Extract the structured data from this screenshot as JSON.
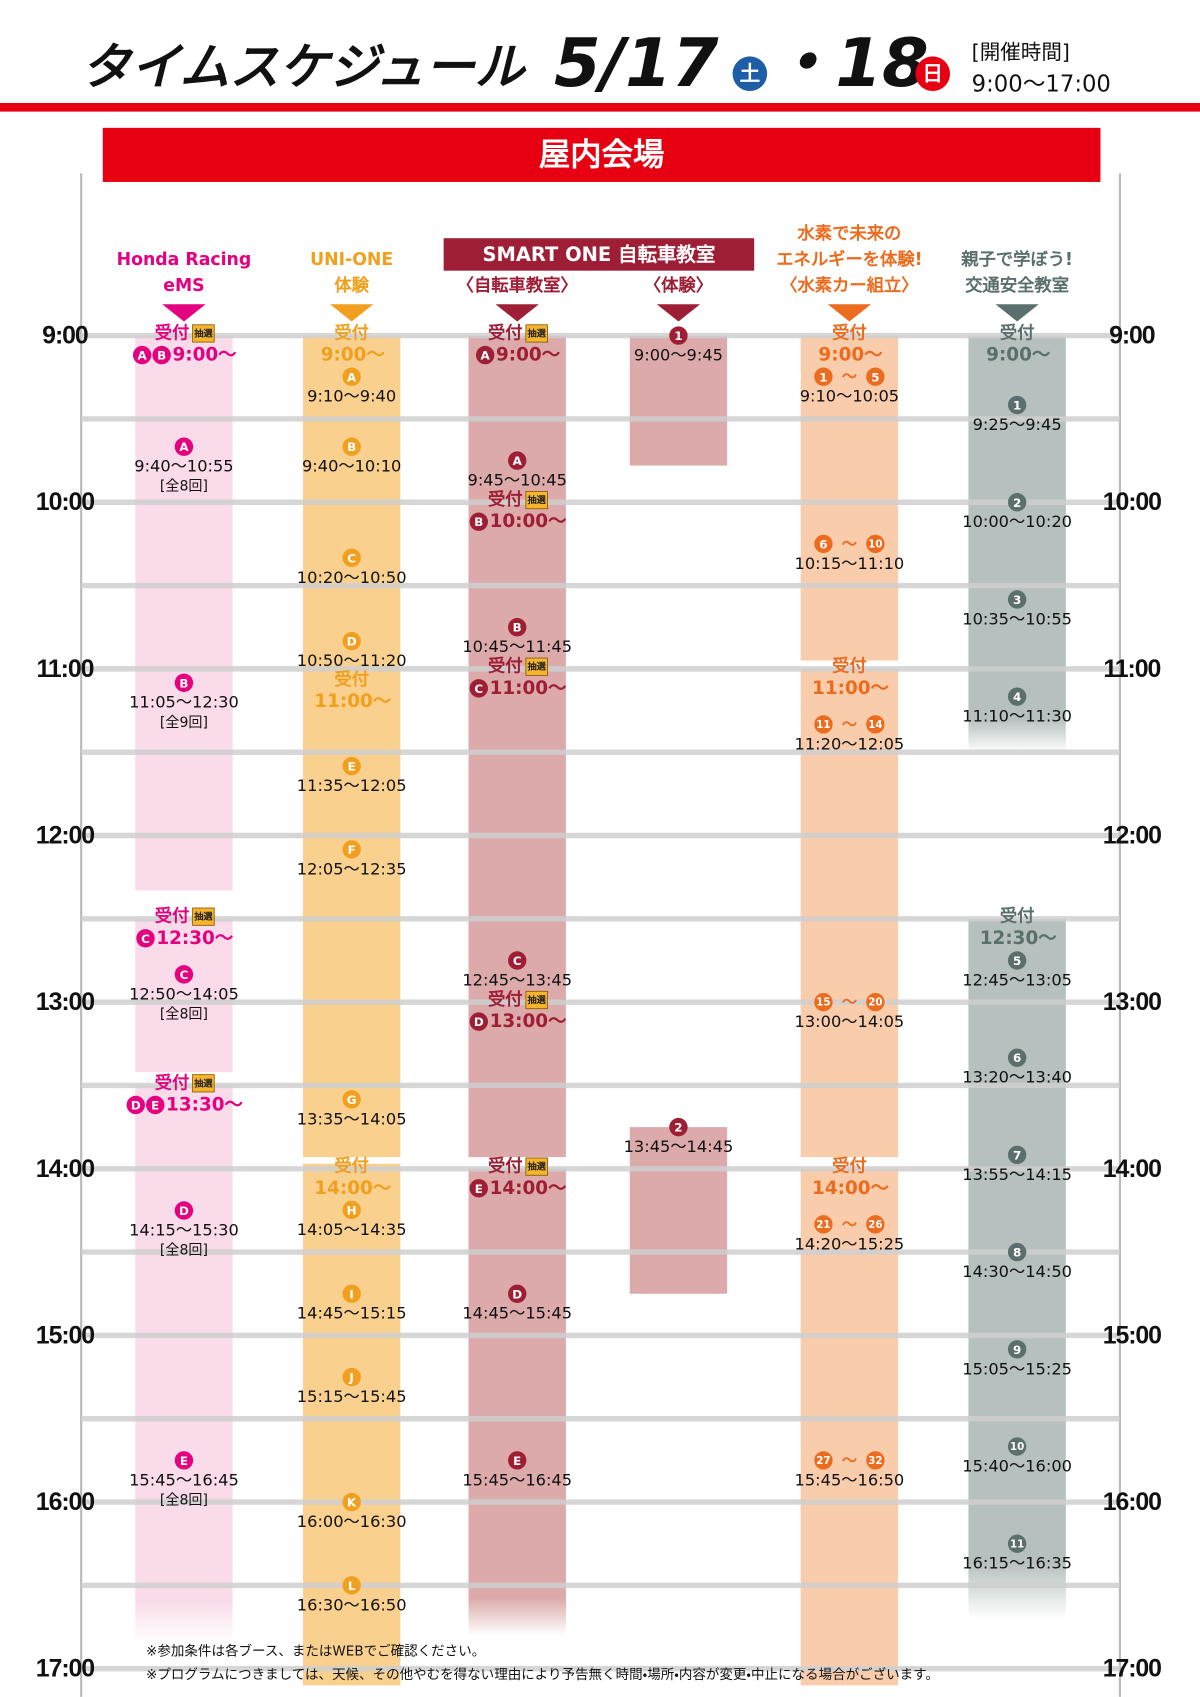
{
  "header": {
    "title": "タイムスケジュール",
    "date1": "5/17",
    "day1": "土",
    "date2": "・18",
    "day2": "日",
    "hours_label": "[開催時間]",
    "hours": "9:00～17:00"
  },
  "venue": "屋内会場",
  "time_labels": [
    "9:00",
    "10:00",
    "11:00",
    "12:00",
    "13:00",
    "14:00",
    "15:00",
    "16:00",
    "17:00"
  ],
  "columns": [
    {
      "title": [
        "Honda Racing",
        "eMS"
      ],
      "color": "#e4007f",
      "fill": "#f9dbe9",
      "items": [
        {
          "reception": "受付",
          "lottery": "抽選",
          "badges": [
            "A",
            "B"
          ],
          "time": "9:00～"
        },
        {
          "badges": [
            "A"
          ],
          "time": "9:40～10:55",
          "note": "[全8回]"
        },
        {
          "badges": [
            "B"
          ],
          "time": "11:05～12:30",
          "note": "[全9回]"
        },
        {
          "reception": "受付",
          "lottery": "抽選",
          "badges": [
            "C"
          ],
          "time": "12:30～"
        },
        {
          "badges": [
            "C"
          ],
          "time": "12:50～14:05",
          "note": "[全8回]"
        },
        {
          "reception": "受付",
          "lottery": "抽選",
          "badges": [
            "D",
            "E"
          ],
          "time": "13:30～"
        },
        {
          "badges": [
            "D"
          ],
          "time": "14:15～15:30",
          "note": "[全8回]"
        },
        {
          "badges": [
            "E"
          ],
          "time": "15:45～16:45",
          "note": "[全8回]"
        }
      ]
    },
    {
      "title": [
        "UNI-ONE",
        "体験"
      ],
      "color": "#f0a01e",
      "fill": "#f9d08e",
      "items": [
        {
          "reception": "受付",
          "time": "9:00～"
        },
        {
          "badges": [
            "A"
          ],
          "time": "9:10～9:40"
        },
        {
          "badges": [
            "B"
          ],
          "time": "9:40～10:10"
        },
        {
          "badges": [
            "C"
          ],
          "time": "10:20～10:50"
        },
        {
          "badges": [
            "D"
          ],
          "time": "10:50～11:20"
        },
        {
          "reception": "受付",
          "time": "11:00～"
        },
        {
          "badges": [
            "E"
          ],
          "time": "11:35～12:05"
        },
        {
          "badges": [
            "F"
          ],
          "time": "12:05～12:35"
        },
        {
          "badges": [
            "G"
          ],
          "time": "13:35～14:05"
        },
        {
          "reception": "受付",
          "time": "14:00～"
        },
        {
          "badges": [
            "H"
          ],
          "time": "14:05～14:35"
        },
        {
          "badges": [
            "I"
          ],
          "time": "14:45～15:15"
        },
        {
          "badges": [
            "J"
          ],
          "time": "15:15～15:45"
        },
        {
          "badges": [
            "K"
          ],
          "time": "16:00～16:30"
        },
        {
          "badges": [
            "L"
          ],
          "time": "16:30～16:50"
        }
      ]
    },
    {
      "group": "SMART ONE 自転車教室",
      "color": "#9e1e35",
      "columns": [
        {
          "title": [
            "〈自転車教室〉"
          ],
          "color": "#9e1e35",
          "fill": "#dcaaaa",
          "items": [
            {
              "reception": "受付",
              "lottery": "抽選",
              "badges": [
                "A"
              ],
              "time": "9:00～"
            },
            {
              "badges": [
                "A"
              ],
              "time": "9:45～10:45"
            },
            {
              "reception": "受付",
              "lottery": "抽選",
              "badges": [
                "B"
              ],
              "time": "10:00～"
            },
            {
              "badges": [
                "B"
              ],
              "time": "10:45～11:45"
            },
            {
              "reception": "受付",
              "lottery": "抽選",
              "badges": [
                "C"
              ],
              "time": "11:00～"
            },
            {
              "badges": [
                "C"
              ],
              "time": "12:45～13:45"
            },
            {
              "reception": "受付",
              "lottery": "抽選",
              "badges": [
                "D"
              ],
              "time": "13:00～"
            },
            {
              "reception": "受付",
              "lottery": "抽選",
              "badges": [
                "E"
              ],
              "time": "14:00～"
            },
            {
              "badges": [
                "D"
              ],
              "time": "14:45～15:45"
            },
            {
              "badges": [
                "E"
              ],
              "time": "15:45～16:45"
            }
          ]
        },
        {
          "title": [
            "〈体験〉"
          ],
          "color": "#9e1e35",
          "fill": "#dcaaaa",
          "items": [
            {
              "badges": [
                "1"
              ],
              "time": "9:00～9:45"
            },
            {
              "badges": [
                "2"
              ],
              "time": "13:45～14:45"
            }
          ]
        }
      ]
    },
    {
      "title": [
        "水素で未来の",
        "エネルギーを体験!",
        "〈水素カー組立〉"
      ],
      "color": "#ec6c1f",
      "fill": "#f9cdab",
      "items": [
        {
          "reception": "受付",
          "time": "9:00～"
        },
        {
          "badges": [
            "1",
            "5"
          ],
          "separator": "～",
          "time": "9:10～10:05"
        },
        {
          "badges": [
            "6",
            "10"
          ],
          "separator": "～",
          "time": "10:15～11:10"
        },
        {
          "reception": "受付",
          "time": "11:00～"
        },
        {
          "badges": [
            "11",
            "14"
          ],
          "separator": "～",
          "time": "11:20～12:05"
        },
        {
          "badges": [
            "15",
            "20"
          ],
          "separator": "～",
          "time": "13:00～14:05"
        },
        {
          "reception": "受付",
          "time": "14:00～"
        },
        {
          "badges": [
            "21",
            "26"
          ],
          "separator": "～",
          "time": "14:20～15:25"
        },
        {
          "badges": [
            "27",
            "32"
          ],
          "separator": "～",
          "time": "15:45～16:50"
        }
      ]
    },
    {
      "title": [
        "親子で学ぼう!",
        "交通安全教室"
      ],
      "color": "#5b6f6f",
      "fill": "#b6c0be",
      "items": [
        {
          "reception": "受付",
          "time": "9:00～"
        },
        {
          "badges": [
            "1"
          ],
          "time": "9:25～9:45"
        },
        {
          "badges": [
            "2"
          ],
          "time": "10:00～10:20"
        },
        {
          "badges": [
            "3"
          ],
          "time": "10:35～10:55"
        },
        {
          "badges": [
            "4"
          ],
          "time": "11:10～11:30"
        },
        {
          "reception": "受付",
          "time": "12:30～"
        },
        {
          "badges": [
            "5"
          ],
          "time": "12:45～13:05"
        },
        {
          "badges": [
            "6"
          ],
          "time": "13:20～13:40"
        },
        {
          "badges": [
            "7"
          ],
          "time": "13:55～14:15"
        },
        {
          "badges": [
            "8"
          ],
          "time": "14:30～14:50"
        },
        {
          "badges": [
            "9"
          ],
          "time": "15:05～15:25"
        },
        {
          "badges": [
            "10"
          ],
          "time": "15:40～16:00"
        },
        {
          "badges": [
            "11"
          ],
          "time": "16:15～16:35"
        }
      ]
    }
  ],
  "notes": [
    "※参加条件は各ブース、またはWEBでご確認ください。",
    "※プログラムにつきましては、天候、その他やむを得ない理由により予告無く時間・場所・内容が変更・中止になる場合がございます。"
  ]
}
